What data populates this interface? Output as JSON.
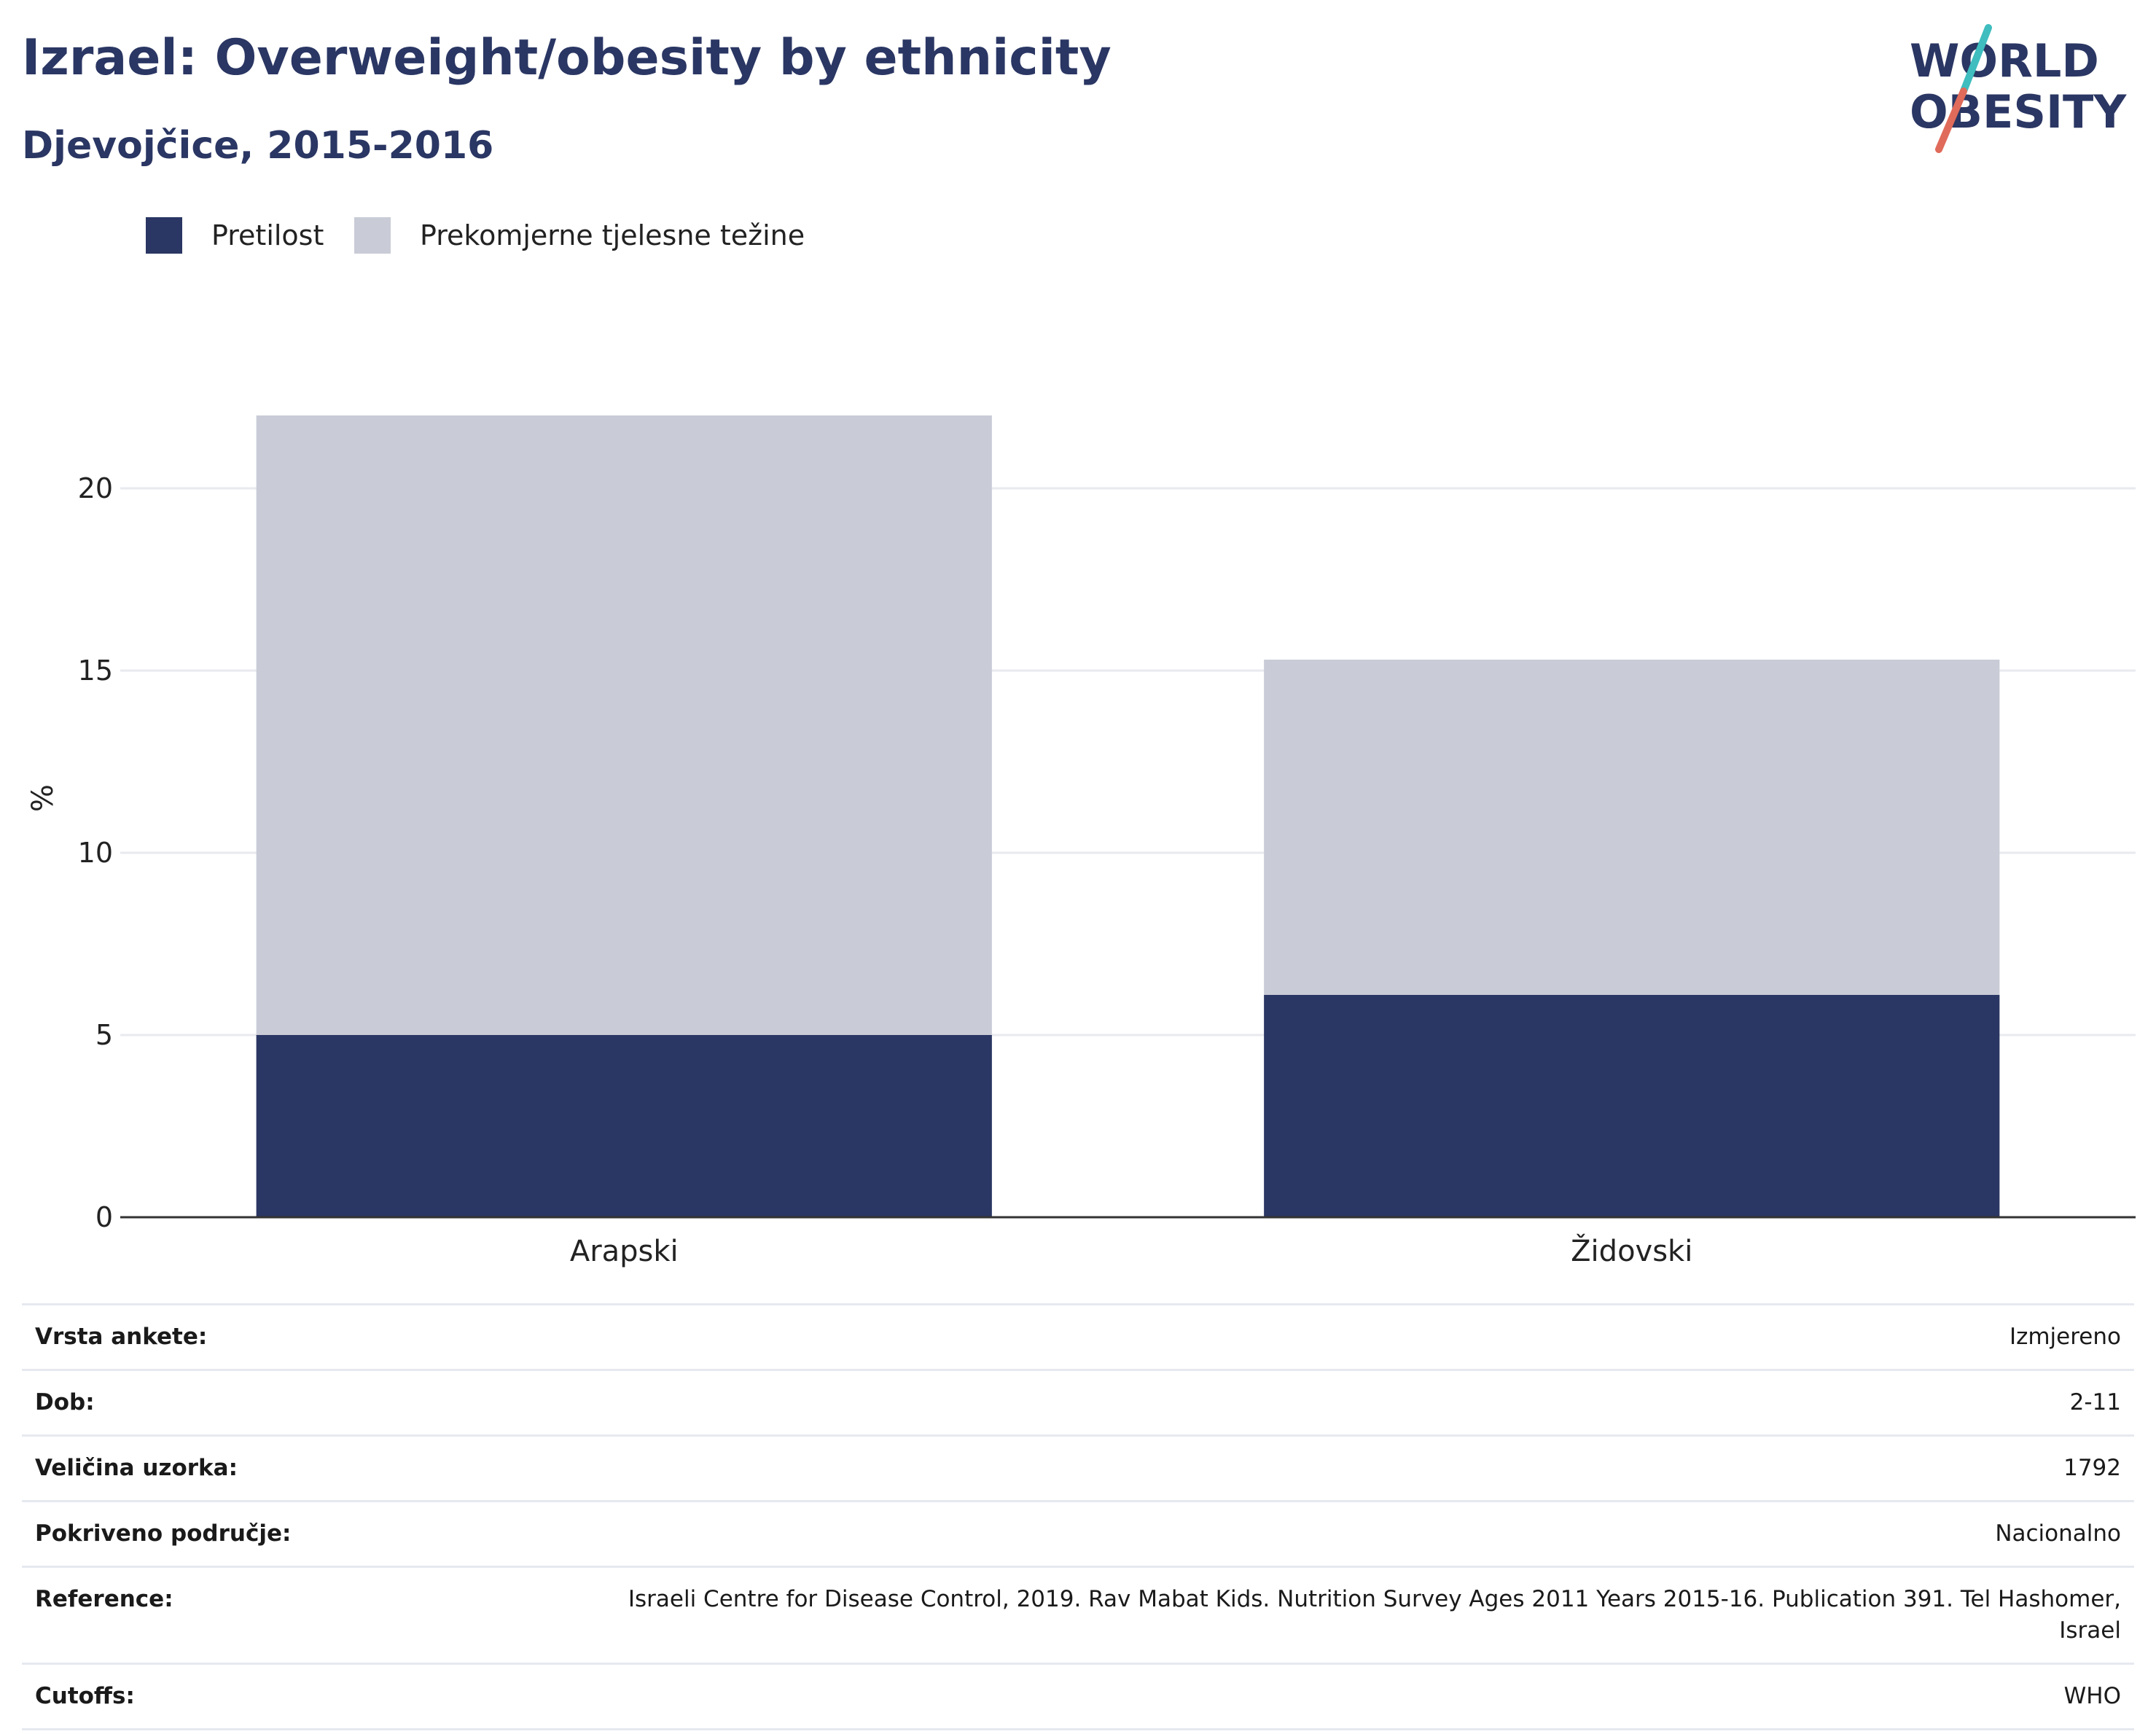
{
  "title": "Izrael: Overweight/obesity by ethnicity",
  "subtitle": "Djevojčice, 2015-2016",
  "logo": {
    "line1": "WORLD",
    "line2": "OBESITY"
  },
  "colors": {
    "obesity": "#2a3663",
    "overweight": "#c9ccd7",
    "title": "#2a3663",
    "logo_teal": "#3fbdbf",
    "logo_coral": "#e06b5a"
  },
  "legend": [
    {
      "label": "Pretilost",
      "color": "#2a3663"
    },
    {
      "label": "Prekomjerne tjelesne težine",
      "color": "#c9ccd7"
    }
  ],
  "chart_data": {
    "type": "bar",
    "stacked": true,
    "categories": [
      "Arapski",
      "Židovski"
    ],
    "series": [
      {
        "name": "Pretilost",
        "values": [
          5.0,
          6.1
        ]
      },
      {
        "name": "Prekomjerne tjelesne težine",
        "values": [
          17.0,
          9.2
        ]
      }
    ],
    "ylabel": "%",
    "ylim": [
      0,
      23
    ],
    "yticks": [
      0,
      5,
      10,
      15,
      20
    ],
    "grid": true
  },
  "info": [
    {
      "label": "Vrsta ankete:",
      "value": "Izmjereno"
    },
    {
      "label": "Dob:",
      "value": "2-11"
    },
    {
      "label": "Veličina uzorka:",
      "value": "1792"
    },
    {
      "label": "Pokriveno područje:",
      "value": "Nacionalno"
    },
    {
      "label": "Reference:",
      "value": "Israeli Centre for Disease Control, 2019. Rav Mabat Kids. Nutrition Survey Ages 2011 Years 2015-16. Publication 391. Tel Hashomer, Israel"
    },
    {
      "label": "Cutoffs:",
      "value": "WHO"
    }
  ]
}
